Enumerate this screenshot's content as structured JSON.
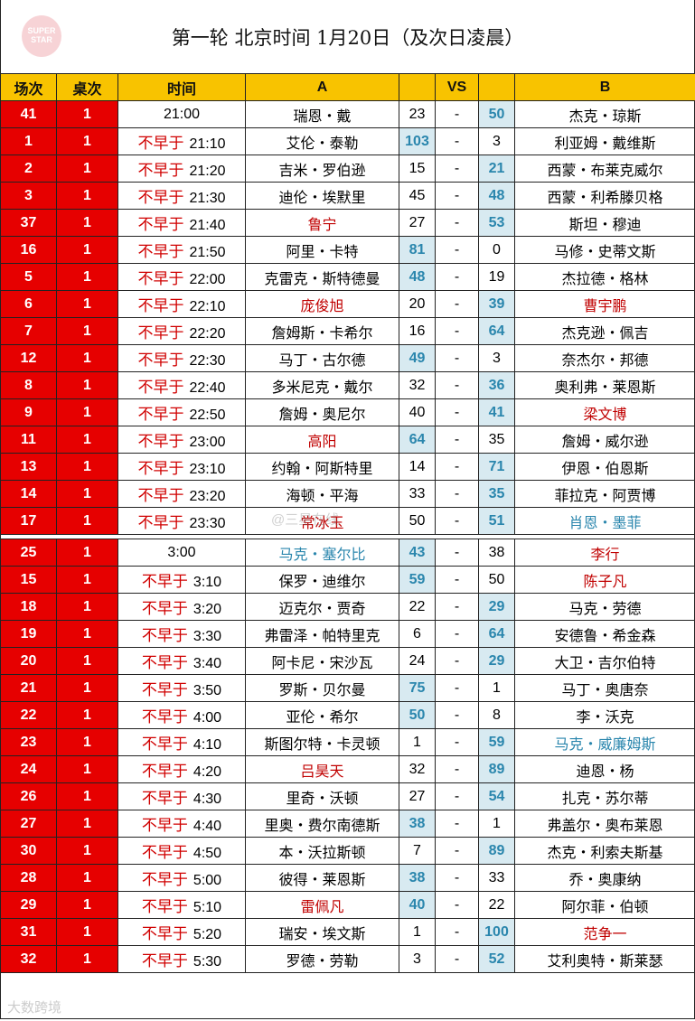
{
  "logo_text": "SUPER STAR",
  "title": "第一轮  北京时间 1月20日（及次日凌晨）",
  "headers": [
    "场次",
    "桌次",
    "时间",
    "A",
    "",
    "VS",
    "",
    "B"
  ],
  "vs_sep": "-",
  "prefix": "不早于",
  "colors": {
    "header": "#f8c300",
    "id_cell": "#e60000",
    "winner_bg": "#d8eaf1",
    "winner_text": "#2a86ad",
    "red_name": "#c00000",
    "blue_name": "#2a86ad"
  },
  "sections": [
    [
      {
        "no": "41",
        "table": "1",
        "pre": false,
        "time": "21:00",
        "a": "瑞恩・戴",
        "ac": "",
        "sa": "23",
        "sb": "50",
        "b": "杰克・琼斯",
        "bc": "",
        "win": "b"
      },
      {
        "no": "1",
        "table": "1",
        "pre": true,
        "time": "21:10",
        "a": "艾伦・泰勒",
        "ac": "",
        "sa": "103",
        "sb": "3",
        "b": "利亚姆・戴维斯",
        "bc": "",
        "win": "a"
      },
      {
        "no": "2",
        "table": "1",
        "pre": true,
        "time": "21:20",
        "a": "吉米・罗伯逊",
        "ac": "",
        "sa": "15",
        "sb": "21",
        "b": "西蒙・布莱克威尔",
        "bc": "",
        "win": "b"
      },
      {
        "no": "3",
        "table": "1",
        "pre": true,
        "time": "21:30",
        "a": "迪伦・埃默里",
        "ac": "",
        "sa": "45",
        "sb": "48",
        "b": "西蒙・利希滕贝格",
        "bc": "",
        "win": "b"
      },
      {
        "no": "37",
        "table": "1",
        "pre": true,
        "time": "21:40",
        "a": "鲁宁",
        "ac": "red",
        "sa": "27",
        "sb": "53",
        "b": "斯坦・穆迪",
        "bc": "",
        "win": "b"
      },
      {
        "no": "16",
        "table": "1",
        "pre": true,
        "time": "21:50",
        "a": "阿里・卡特",
        "ac": "",
        "sa": "81",
        "sb": "0",
        "b": "马修・史蒂文斯",
        "bc": "",
        "win": "a"
      },
      {
        "no": "5",
        "table": "1",
        "pre": true,
        "time": "22:00",
        "a": "克雷克・斯特德曼",
        "ac": "",
        "sa": "48",
        "sb": "19",
        "b": "杰拉德・格林",
        "bc": "",
        "win": "a"
      },
      {
        "no": "6",
        "table": "1",
        "pre": true,
        "time": "22:10",
        "a": "庞俊旭",
        "ac": "red",
        "sa": "20",
        "sb": "39",
        "b": "曹宇鹏",
        "bc": "red",
        "win": "b"
      },
      {
        "no": "7",
        "table": "1",
        "pre": true,
        "time": "22:20",
        "a": "詹姆斯・卡希尔",
        "ac": "",
        "sa": "16",
        "sb": "64",
        "b": "杰克逊・佩吉",
        "bc": "",
        "win": "b"
      },
      {
        "no": "12",
        "table": "1",
        "pre": true,
        "time": "22:30",
        "a": "马丁・古尔德",
        "ac": "",
        "sa": "49",
        "sb": "3",
        "b": "奈杰尔・邦德",
        "bc": "",
        "win": "a"
      },
      {
        "no": "8",
        "table": "1",
        "pre": true,
        "time": "22:40",
        "a": "多米尼克・戴尔",
        "ac": "",
        "sa": "32",
        "sb": "36",
        "b": "奥利弗・莱恩斯",
        "bc": "",
        "win": "b"
      },
      {
        "no": "9",
        "table": "1",
        "pre": true,
        "time": "22:50",
        "a": "詹姆・奥尼尔",
        "ac": "",
        "sa": "40",
        "sb": "41",
        "b": "梁文博",
        "bc": "red",
        "win": "b"
      },
      {
        "no": "11",
        "table": "1",
        "pre": true,
        "time": "23:00",
        "a": "高阳",
        "ac": "red",
        "sa": "64",
        "sb": "35",
        "b": "詹姆・威尔逊",
        "bc": "",
        "win": "a"
      },
      {
        "no": "13",
        "table": "1",
        "pre": true,
        "time": "23:10",
        "a": "约翰・阿斯特里",
        "ac": "",
        "sa": "14",
        "sb": "71",
        "b": "伊恩・伯恩斯",
        "bc": "",
        "win": "b"
      },
      {
        "no": "14",
        "table": "1",
        "pre": true,
        "time": "23:20",
        "a": "海顿・平海",
        "ac": "",
        "sa": "33",
        "sb": "35",
        "b": "菲拉克・阿贾博",
        "bc": "",
        "win": "b"
      },
      {
        "no": "17",
        "table": "1",
        "pre": true,
        "time": "23:30",
        "a": "常冰玉",
        "ac": "red",
        "sa": "50",
        "sb": "51",
        "b": "肖恩・墨菲",
        "bc": "blue",
        "win": "b"
      }
    ],
    [
      {
        "no": "25",
        "table": "1",
        "pre": false,
        "time": "3:00",
        "a": "马克・塞尔比",
        "ac": "blue",
        "sa": "43",
        "sb": "38",
        "b": "李行",
        "bc": "red",
        "win": "a"
      },
      {
        "no": "15",
        "table": "1",
        "pre": true,
        "time": "3:10",
        "a": "保罗・迪维尔",
        "ac": "",
        "sa": "59",
        "sb": "50",
        "b": "陈子凡",
        "bc": "red",
        "win": "a"
      },
      {
        "no": "18",
        "table": "1",
        "pre": true,
        "time": "3:20",
        "a": "迈克尔・贾奇",
        "ac": "",
        "sa": "22",
        "sb": "29",
        "b": "马克・劳德",
        "bc": "",
        "win": "b"
      },
      {
        "no": "19",
        "table": "1",
        "pre": true,
        "time": "3:30",
        "a": "弗雷泽・帕特里克",
        "ac": "",
        "sa": "6",
        "sb": "64",
        "b": "安德鲁・希金森",
        "bc": "",
        "win": "b"
      },
      {
        "no": "20",
        "table": "1",
        "pre": true,
        "time": "3:40",
        "a": "阿卡尼・宋沙瓦",
        "ac": "",
        "sa": "24",
        "sb": "29",
        "b": "大卫・吉尔伯特",
        "bc": "",
        "win": "b"
      },
      {
        "no": "21",
        "table": "1",
        "pre": true,
        "time": "3:50",
        "a": "罗斯・贝尔曼",
        "ac": "",
        "sa": "75",
        "sb": "1",
        "b": "马丁・奥唐奈",
        "bc": "",
        "win": "a"
      },
      {
        "no": "22",
        "table": "1",
        "pre": true,
        "time": "4:00",
        "a": "亚伦・希尔",
        "ac": "",
        "sa": "50",
        "sb": "8",
        "b": "李・沃克",
        "bc": "",
        "win": "a"
      },
      {
        "no": "23",
        "table": "1",
        "pre": true,
        "time": "4:10",
        "a": "斯图尔特・卡灵顿",
        "ac": "",
        "sa": "1",
        "sb": "59",
        "b": "马克・威廉姆斯",
        "bc": "blue",
        "win": "b"
      },
      {
        "no": "24",
        "table": "1",
        "pre": true,
        "time": "4:20",
        "a": "吕昊天",
        "ac": "red",
        "sa": "32",
        "sb": "89",
        "b": "迪恩・杨",
        "bc": "",
        "win": "b"
      },
      {
        "no": "26",
        "table": "1",
        "pre": true,
        "time": "4:30",
        "a": "里奇・沃顿",
        "ac": "",
        "sa": "27",
        "sb": "54",
        "b": "扎克・苏尔蒂",
        "bc": "",
        "win": "b"
      },
      {
        "no": "27",
        "table": "1",
        "pre": true,
        "time": "4:40",
        "a": "里奥・费尔南德斯",
        "ac": "",
        "sa": "38",
        "sb": "1",
        "b": "弗盖尔・奥布莱恩",
        "bc": "",
        "win": "a"
      },
      {
        "no": "30",
        "table": "1",
        "pre": true,
        "time": "4:50",
        "a": "本・沃拉斯顿",
        "ac": "",
        "sa": "7",
        "sb": "89",
        "b": "杰克・利索夫斯基",
        "bc": "",
        "win": "b"
      },
      {
        "no": "28",
        "table": "1",
        "pre": true,
        "time": "5:00",
        "a": "彼得・莱恩斯",
        "ac": "",
        "sa": "38",
        "sb": "33",
        "b": "乔・奥康纳",
        "bc": "",
        "win": "a"
      },
      {
        "no": "29",
        "table": "1",
        "pre": true,
        "time": "5:10",
        "a": "雷佩凡",
        "ac": "red",
        "sa": "40",
        "sb": "22",
        "b": "阿尔菲・伯顿",
        "bc": "",
        "win": "a"
      },
      {
        "no": "31",
        "table": "1",
        "pre": true,
        "time": "5:20",
        "a": "瑞安・埃文斯",
        "ac": "",
        "sa": "1",
        "sb": "100",
        "b": "范争一",
        "bc": "red",
        "win": "b"
      },
      {
        "no": "32",
        "table": "1",
        "pre": true,
        "time": "5:30",
        "a": "罗德・劳勒",
        "ac": "",
        "sa": "3",
        "sb": "52",
        "b": "艾利奥特・斯莱瑟",
        "bc": "",
        "win": "b"
      }
    ]
  ],
  "watermark_center": "@三星在线",
  "watermark_bottom": "大数跨境"
}
